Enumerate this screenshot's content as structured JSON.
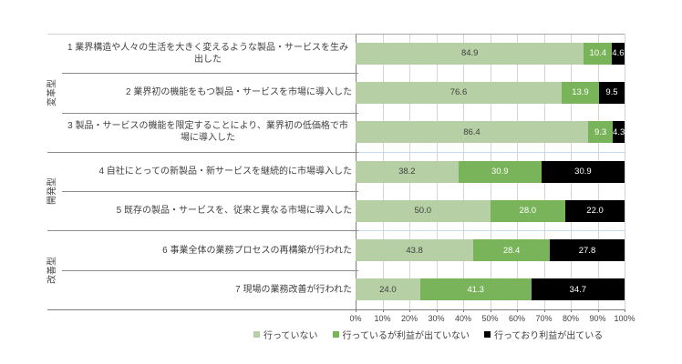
{
  "chart_data": {
    "type": "bar",
    "orientation": "horizontal",
    "stacked": true,
    "categories": [
      "1 業界構造や人々の生活を大きく変えるような製品・サービスを生み出した",
      "2 業界初の機能をもつ製品・サービスを市場に導入した",
      "3 製品・サービスの機能を限定することにより、業界初の低価格で市場に導入した",
      "4 自社にとっての新製品・新サービスを継続的に市場導入した",
      "5 既存の製品・サービスを、従来と異なる市場に導入した",
      "6 事業全体の業務プロセスの再構築が行われた",
      "7 現場の業務改善が行われた"
    ],
    "category_groups": [
      {
        "label": "変革型",
        "span": 3
      },
      {
        "label": "開発型",
        "span": 2
      },
      {
        "label": "改善型",
        "span": 2
      }
    ],
    "series": [
      {
        "name": "行っていない",
        "color": "#b6cfa5",
        "text_color": "#404040",
        "values": [
          84.9,
          76.6,
          86.4,
          38.2,
          50.0,
          43.8,
          24.0
        ]
      },
      {
        "name": "行っているが利益が出ていない",
        "color": "#79b35a",
        "text_color": "#ffffff",
        "values": [
          10.4,
          13.9,
          9.3,
          30.9,
          28.0,
          28.4,
          41.3
        ]
      },
      {
        "name": "行っており利益が出ている",
        "color": "#000000",
        "text_color": "#ffffff",
        "values": [
          4.6,
          9.5,
          4.3,
          30.9,
          22.0,
          27.8,
          34.7
        ]
      }
    ],
    "x_ticks": [
      "0%",
      "10%",
      "20%",
      "30%",
      "40%",
      "50%",
      "60%",
      "70%",
      "80%",
      "90%",
      "100%"
    ],
    "xlim": [
      0,
      100
    ],
    "grid": true,
    "legend_position": "bottom"
  },
  "colors": {
    "gridline": "#d4d4d4",
    "plot_border": "#a6a6a6",
    "axis_line": "#808080",
    "table_line": "#8c8c8c",
    "group_separator": "#c5d9f1",
    "text": "#404040",
    "background": "#ffffff"
  }
}
